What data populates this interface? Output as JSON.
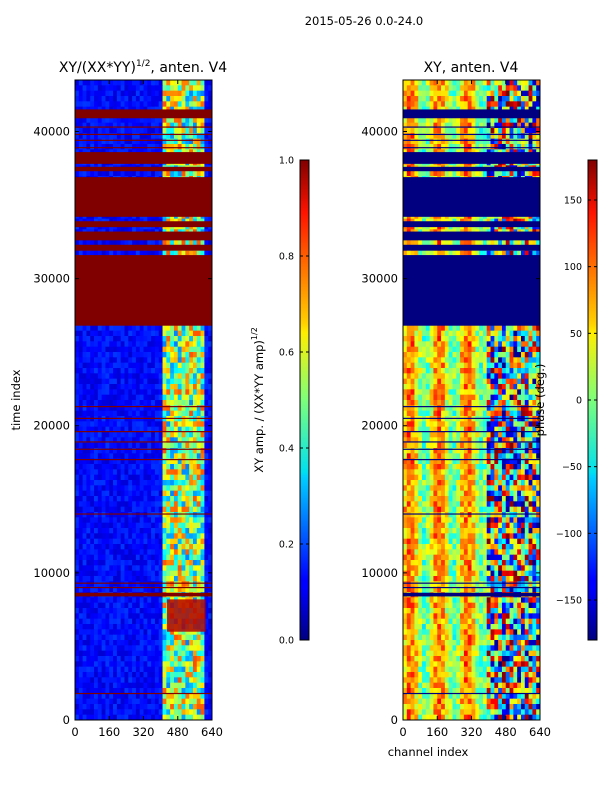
{
  "suptitle": "2015-05-26 0.0-24.0",
  "chart_data": [
    {
      "type": "heatmap",
      "title": "XY/(XX*YY)^1/2, anten. V4",
      "title_main": "XY/(XX*YY)",
      "title_exp": "1/2",
      "title_tail": ", anten. V4",
      "xlabel": "",
      "ylabel": "time index",
      "xlim": [
        0,
        640
      ],
      "ylim": [
        0,
        43500
      ],
      "xticks": [
        0,
        160,
        320,
        480,
        640
      ],
      "yticks": [
        0,
        10000,
        20000,
        30000,
        40000
      ],
      "colorbar": {
        "label": "XY amp. / (XX*YY amp)^1/2",
        "label_main": "XY amp. / (XX*YY amp)",
        "label_exp": "1/2",
        "range": [
          0.0,
          1.0
        ],
        "ticks": [
          "0.0",
          "0.2",
          "0.4",
          "0.6",
          "0.8",
          "1.0"
        ],
        "colormap": "jet"
      },
      "bands": [
        {
          "y0": 26800,
          "y1": 31600,
          "value": 1.0
        },
        {
          "y0": 31900,
          "y1": 32300,
          "value": 1.0
        },
        {
          "y0": 32600,
          "y1": 33200,
          "value": 1.0
        },
        {
          "y0": 33500,
          "y1": 33900,
          "value": 1.0
        },
        {
          "y0": 34200,
          "y1": 36900,
          "value": 1.0
        },
        {
          "y0": 37300,
          "y1": 37600,
          "value": 1.0
        },
        {
          "y0": 37800,
          "y1": 38600,
          "value": 1.0
        },
        {
          "y0": 40900,
          "y1": 41500,
          "value": 1.0
        },
        {
          "y0": 8400,
          "y1": 8650,
          "value": 1.0
        }
      ],
      "lines": [
        1800,
        9000,
        9300,
        14000,
        17700,
        18400,
        18900,
        19600,
        20500,
        21300,
        38900,
        39400,
        39800,
        40300
      ],
      "hot_patch": {
        "x0": 430,
        "x1": 610,
        "y0": 6000,
        "y1": 8200,
        "value": 0.95
      }
    },
    {
      "type": "heatmap",
      "title": "XY, anten. V4",
      "xlabel": "channel index",
      "ylabel": "",
      "xlim": [
        0,
        640
      ],
      "ylim": [
        0,
        43500
      ],
      "xticks": [
        0,
        160,
        320,
        480,
        640
      ],
      "yticks": [
        0,
        10000,
        20000,
        30000,
        40000
      ],
      "colorbar": {
        "label": "phase (deg.)",
        "range": [
          -180,
          180
        ],
        "ticks": [
          "−150",
          "−100",
          "−50",
          "0",
          "50",
          "100",
          "150"
        ],
        "tick_values": [
          -150,
          -100,
          -50,
          0,
          50,
          100,
          150
        ],
        "colormap": "jet"
      },
      "bands": [
        {
          "y0": 26800,
          "y1": 31600,
          "value": -180
        },
        {
          "y0": 31900,
          "y1": 32300,
          "value": -180
        },
        {
          "y0": 32600,
          "y1": 33200,
          "value": -180
        },
        {
          "y0": 33500,
          "y1": 33900,
          "value": -180
        },
        {
          "y0": 34200,
          "y1": 36900,
          "value": -180
        },
        {
          "y0": 37300,
          "y1": 37600,
          "value": -180
        },
        {
          "y0": 37800,
          "y1": 38600,
          "value": -180
        },
        {
          "y0": 40900,
          "y1": 41500,
          "value": -180
        },
        {
          "y0": 8400,
          "y1": 8650,
          "value": -180
        }
      ],
      "lines": [
        1800,
        9000,
        9300,
        14000,
        17700,
        18400,
        18900,
        19600,
        20500,
        21300,
        38900,
        39400,
        39800,
        40300
      ]
    }
  ]
}
